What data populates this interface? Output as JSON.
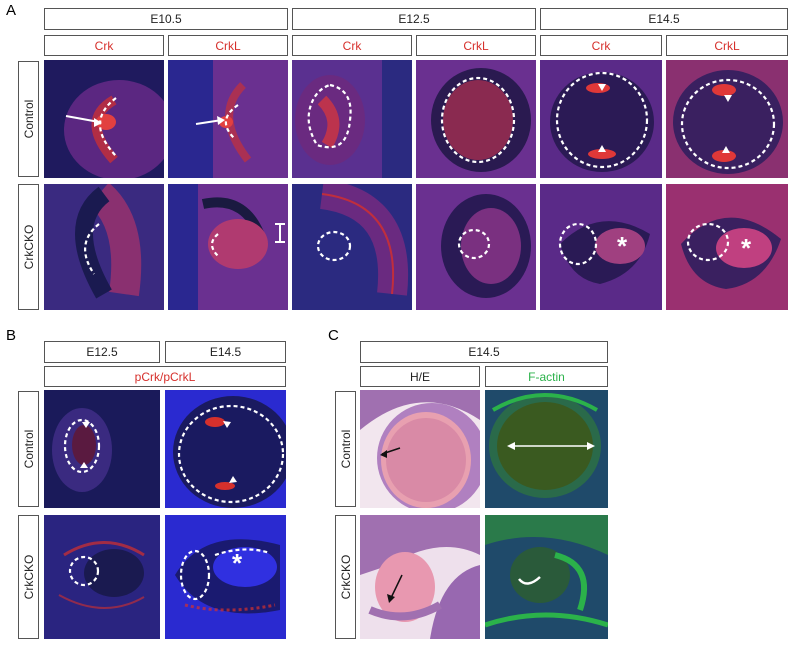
{
  "panels": {
    "A": {
      "label": "A",
      "stages": [
        "E10.5",
        "E12.5",
        "E14.5"
      ],
      "markers": [
        "Crk",
        "CrkL",
        "Crk",
        "CrkL",
        "Crk",
        "CrkL"
      ],
      "rows": [
        "Control",
        "CrkCKO"
      ]
    },
    "B": {
      "label": "B",
      "stages": [
        "E12.5",
        "E14.5"
      ],
      "marker": "pCrk/pCrkL",
      "rows": [
        "Control",
        "CrkCKO"
      ]
    },
    "C": {
      "label": "C",
      "stage": "E14.5",
      "stains": [
        "H/E",
        "F-actin"
      ],
      "rows": [
        "Control",
        "CrkCKO"
      ]
    }
  },
  "colors": {
    "marker_red": "#d6302c",
    "factin_green": "#2bb24a",
    "dapi_blue": "#2a2ad0",
    "he_pink": "#d98aa6"
  }
}
